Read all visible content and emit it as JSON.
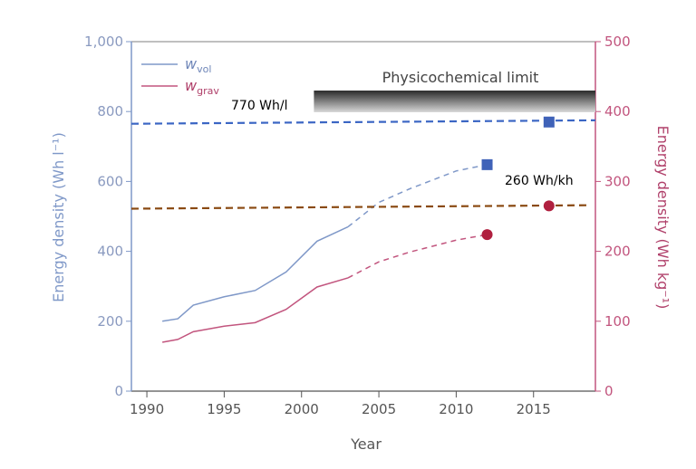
{
  "chart_data": {
    "type": "line",
    "xlabel": "Year",
    "ylabel_left": "Energy density (Wh l⁻¹)",
    "ylabel_right": "Energy density (Wh kg⁻¹)",
    "xlim": [
      1989,
      2019
    ],
    "ylim_left": [
      0,
      1000
    ],
    "ylim_right": [
      0,
      500
    ],
    "x_ticks": [
      "1990",
      "1995",
      "2000",
      "2005",
      "2010",
      "2015"
    ],
    "x_tick_values": [
      1990,
      1995,
      2000,
      2005,
      2010,
      2015
    ],
    "y_ticks_left": [
      "0",
      "200",
      "400",
      "600",
      "800",
      "1,000"
    ],
    "y_tick_values_left": [
      0,
      200,
      400,
      600,
      800,
      1000
    ],
    "y_ticks_right": [
      "0",
      "100",
      "200",
      "300",
      "400",
      "500"
    ],
    "y_tick_values_right": [
      0,
      100,
      200,
      300,
      400,
      500
    ],
    "grid": false,
    "legend_placement": "top-left",
    "legend": [
      {
        "base": "w",
        "sub": "vol"
      },
      {
        "base": "w",
        "sub": "grav"
      }
    ],
    "series": [
      {
        "name": "w_vol",
        "axis": "left",
        "color": "#7f98c8",
        "solid": {
          "x": [
            1991,
            1992,
            1993,
            1995,
            1997,
            1999,
            2001,
            2003
          ],
          "y": [
            200,
            207,
            246,
            270,
            288,
            341,
            429,
            470
          ]
        },
        "dashed": {
          "x": [
            2003,
            2005,
            2007,
            2010,
            2012
          ],
          "y": [
            470,
            540,
            579,
            630,
            648
          ]
        },
        "markers": {
          "shape": "square",
          "color": "#3f62b8",
          "x": [
            2012,
            2016
          ],
          "y": [
            648,
            770
          ]
        }
      },
      {
        "name": "w_grav",
        "axis": "right",
        "color": "#c2557e",
        "solid": {
          "x": [
            1991,
            1992,
            1993,
            1995,
            1997,
            1999,
            2001,
            2003
          ],
          "y": [
            70,
            74,
            85,
            93,
            98,
            117,
            149,
            162
          ]
        },
        "dashed": {
          "x": [
            2003,
            2005,
            2007,
            2010,
            2012
          ],
          "y": [
            162,
            185,
            199,
            216,
            224
          ]
        },
        "markers": {
          "shape": "circle",
          "color": "#b0203f",
          "x": [
            2012,
            2016
          ],
          "y": [
            224,
            265
          ]
        }
      }
    ],
    "reference_lines": [
      {
        "axis": "left",
        "label": "770 Wh/l",
        "color": "#3b66c4",
        "x": [
          1989,
          2019
        ],
        "y": [
          765,
          775
        ]
      },
      {
        "axis": "right",
        "label": "260 Wh/kh",
        "color": "#8a4a12",
        "x": [
          1989,
          2018.7
        ],
        "y": [
          261,
          266
        ]
      }
    ],
    "annotation_band": {
      "label": "Physicochemical limit",
      "x": [
        2000.8,
        2019
      ],
      "y_left": [
        798,
        860
      ]
    }
  }
}
